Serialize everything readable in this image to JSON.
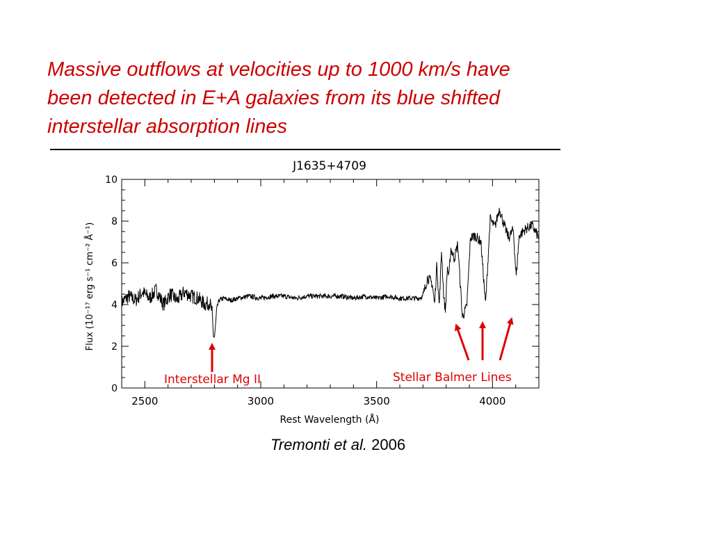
{
  "headline": {
    "lines": [
      "Massive outflows at velocities up to 1000 km/s have",
      "been detected in E+A galaxies from its blue shifted",
      "interstellar absorption lines"
    ],
    "color": "#cc0000"
  },
  "citation": {
    "authors": "Tremonti et al.",
    "year": "2006"
  },
  "chart_data": {
    "type": "line",
    "title": "J1635+4709",
    "xlabel": "Rest Wavelength (Å)",
    "ylabel": "Flux (10⁻¹⁷ erg s⁻¹ cm⁻² Å⁻¹)",
    "xlim": [
      2400,
      4200
    ],
    "ylim": [
      0,
      10
    ],
    "x_ticks": [
      2500,
      3000,
      3500,
      4000
    ],
    "y_ticks": [
      0,
      2,
      4,
      6,
      8,
      10
    ],
    "grid": false,
    "line_color": "#000000",
    "annotation_color": "#dd0000",
    "series": [
      {
        "x": [
          2400,
          2430,
          2460,
          2490,
          2520,
          2550,
          2580,
          2610,
          2640,
          2670,
          2700,
          2730,
          2760,
          2780,
          2790,
          2795,
          2800,
          2805,
          2810,
          2820,
          2840,
          2870,
          2900,
          2950,
          3000,
          3050,
          3100,
          3150,
          3200,
          3250,
          3300,
          3350,
          3400,
          3450,
          3500,
          3550,
          3600,
          3650,
          3680,
          3700,
          3720,
          3740,
          3750,
          3760,
          3770,
          3780,
          3790,
          3797,
          3805,
          3812,
          3820,
          3835,
          3850,
          3870,
          3889,
          3905,
          3925,
          3950,
          3970,
          3990,
          4010,
          4030,
          4050,
          4070,
          4090,
          4102,
          4115,
          4140,
          4170,
          4200
        ],
        "y": [
          4.1,
          4.4,
          4.2,
          4.6,
          4.3,
          4.7,
          4.0,
          4.5,
          4.2,
          4.6,
          4.4,
          4.3,
          4.0,
          4.1,
          3.6,
          2.6,
          2.4,
          3.0,
          3.8,
          4.2,
          4.3,
          4.2,
          4.3,
          4.4,
          4.3,
          4.4,
          4.4,
          4.3,
          4.4,
          4.4,
          4.4,
          4.4,
          4.3,
          4.4,
          4.3,
          4.4,
          4.3,
          4.3,
          4.3,
          4.4,
          5.3,
          5.0,
          4.0,
          6.0,
          3.9,
          6.6,
          4.3,
          3.7,
          5.8,
          5.3,
          6.7,
          6.2,
          6.9,
          3.4,
          3.9,
          7.2,
          7.3,
          7.0,
          4.0,
          8.1,
          7.7,
          8.6,
          7.8,
          7.2,
          7.6,
          5.3,
          7.3,
          7.6,
          7.8,
          7.2
        ]
      }
    ],
    "annotations": [
      {
        "text": "Interstellar Mg II"
      },
      {
        "text": "Stellar Balmer Lines"
      }
    ]
  }
}
